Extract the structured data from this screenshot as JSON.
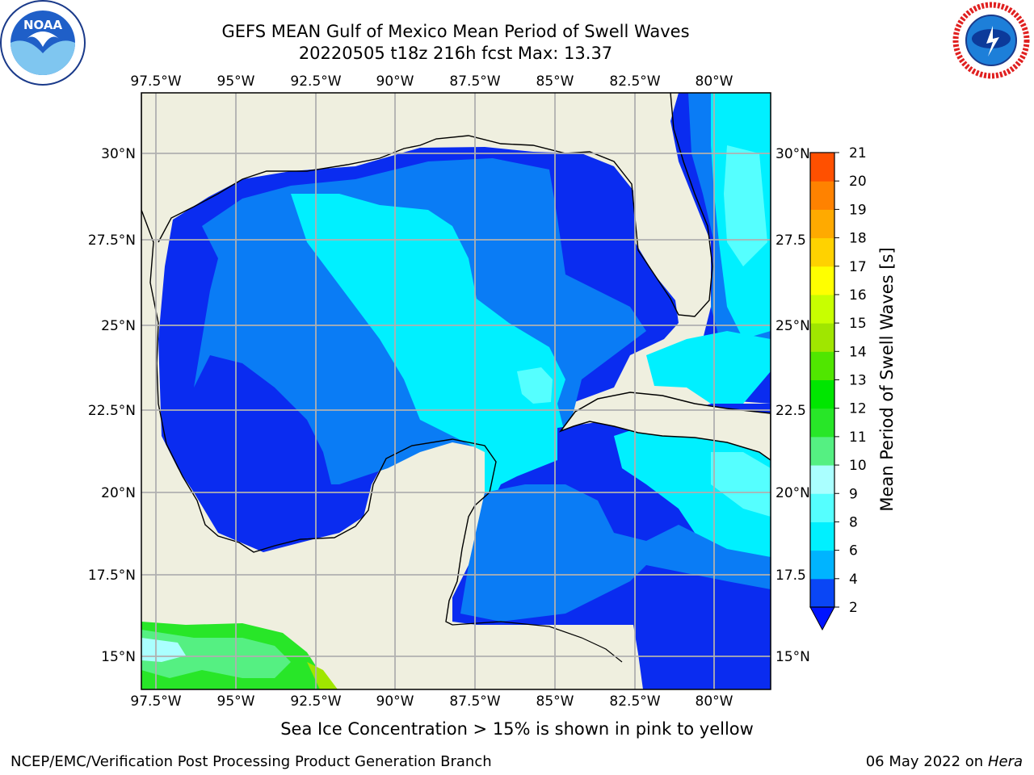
{
  "title": {
    "line1": "GEFS MEAN Gulf of Mexico Mean Period of Swell Waves",
    "line2": "20220505 t18z 216h fcst   Max: 13.37"
  },
  "map": {
    "lon_labels": [
      "97.5°W",
      "95°W",
      "92.5°W",
      "90°W",
      "87.5°W",
      "85°W",
      "82.5°W",
      "80°W"
    ],
    "lat_labels_left": [
      "30°N",
      "27.5°N",
      "25°N",
      "22.5°N",
      "20°N",
      "17.5°N",
      "15°N"
    ],
    "lat_labels_right": [
      "30°N",
      "27.5",
      "25°N",
      "22.5",
      "20°N",
      "17.5",
      "15°N"
    ],
    "extent": {
      "lon_min": -98.0,
      "lon_max": -78.25,
      "lat_min": 14.0,
      "lat_max": 31.8
    },
    "land_color": "#efefdf",
    "grid_color": "#b0b0b0"
  },
  "colorbar": {
    "label": "Mean Period of Swell Waves [s]",
    "ticks": [
      "2",
      "4",
      "6",
      "8",
      "9",
      "10",
      "11",
      "12",
      "13",
      "14",
      "15",
      "16",
      "17",
      "18",
      "19",
      "20",
      "21"
    ],
    "colors": [
      "#0a46f5",
      "#00b4ff",
      "#00f0ff",
      "#55ffff",
      "#aaffff",
      "#55f082",
      "#28e628",
      "#00e600",
      "#50e600",
      "#a0e600",
      "#c8ff00",
      "#ffff00",
      "#ffd200",
      "#ffaa00",
      "#ff8200",
      "#ff5000",
      "#ff0000"
    ],
    "under_color": "#0014ff"
  },
  "subtitle": "Sea Ice Concentration > 15% is shown in pink to yellow",
  "footer": {
    "left": "NCEP/EMC/Verification Post Processing Product Generation Branch",
    "right_date": "06 May 2022 on",
    "right_machine": "Hera"
  },
  "logos": {
    "left": "noaa-logo",
    "right": "nws-logo"
  }
}
